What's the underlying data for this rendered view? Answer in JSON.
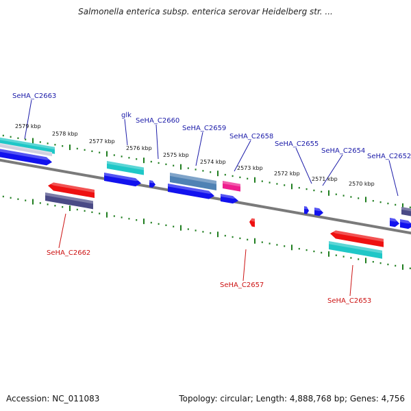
{
  "title": "Salmonella enterica subsp. enterica serovar Heidelberg str. ...",
  "footer": {
    "accession": "Accession: NC_011083",
    "topology": "Topology: circular; Length: 4,888,768 bp; Genes: 4,756"
  },
  "colors": {
    "forward_label": "#1a1aa8",
    "reverse_label": "#cc1111",
    "tick": "#1e7d1e",
    "backbone": "#7a7a7a",
    "cyan": "#1fc7c7",
    "blue": "#1212ee",
    "red": "#ee1111",
    "slate": "#4a4a86",
    "steel": "#4f82b4",
    "pink": "#ee1f8e"
  },
  "kbp_labels": [
    "2579 kbp",
    "2578 kbp",
    "2577 kbp",
    "2576 kbp",
    "2575 kbp",
    "2574 kbp",
    "2573 kbp",
    "2572 kbp",
    "2571 kbp",
    "2570 kbp"
  ],
  "gene_labels": {
    "forward": [
      "SeHA_C2663",
      "glk",
      "SeHA_C2660",
      "SeHA_C2659",
      "SeHA_C2658",
      "SeHA_C2655",
      "SeHA_C2654",
      "SeHA_C2652"
    ],
    "reverse": [
      "SeHA_C2662",
      "SeHA_C2657",
      "SeHA_C2653"
    ]
  }
}
